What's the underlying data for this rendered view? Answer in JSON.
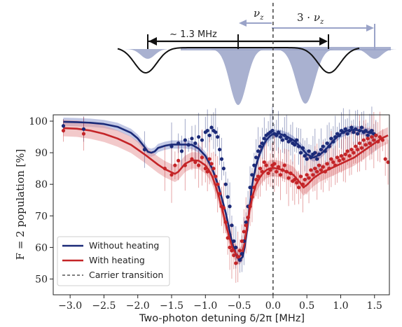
{
  "chart_data": {
    "type": "scatter",
    "xlabel": "Two-photon detuning δ/2π [MHz]",
    "ylabel": "F = 2  population [%]",
    "xlim": [
      -3.25,
      1.72
    ],
    "ylim": [
      45,
      102
    ],
    "xticks": [
      -3.0,
      -2.5,
      -2.0,
      -1.5,
      -1.0,
      -0.5,
      0.0,
      0.5,
      1.0,
      1.5
    ],
    "xtick_labels": [
      "−3.0",
      "−2.5",
      "−2.0",
      "−1.5",
      "−1.0",
      "−0.5",
      "0.0",
      "0.5",
      "1.0",
      "1.5"
    ],
    "yticks": [
      50,
      60,
      70,
      80,
      90,
      100
    ],
    "ytick_labels": [
      "50",
      "60",
      "70",
      "80",
      "90",
      "100"
    ],
    "grid": false,
    "legend_position": "bottom-left",
    "legend": [
      {
        "label": "Without heating",
        "style": "line",
        "color": "#1b2a78"
      },
      {
        "label": "With heating",
        "style": "line",
        "color": "#c42427"
      },
      {
        "label": "Carrier transition",
        "style": "dashed",
        "color": "#333333"
      }
    ],
    "carrier_x": 0.0,
    "series": [
      {
        "name": "Without heating",
        "color": "#1b2a78",
        "band_color": "#8f9bd0",
        "fit": {
          "x": [
            -3.1,
            -2.9,
            -2.7,
            -2.5,
            -2.3,
            -2.1,
            -2.0,
            -1.9,
            -1.85,
            -1.8,
            -1.75,
            -1.7,
            -1.6,
            -1.5,
            -1.4,
            -1.3,
            -1.2,
            -1.1,
            -1.0,
            -0.9,
            -0.8,
            -0.7,
            -0.65,
            -0.6,
            -0.55,
            -0.5,
            -0.45,
            -0.42,
            -0.38,
            -0.35,
            -0.32,
            -0.3,
            -0.25,
            -0.2,
            -0.15,
            -0.1,
            -0.05,
            0.0,
            0.1,
            0.2,
            0.3,
            0.4,
            0.5,
            0.6,
            0.7,
            0.8,
            0.9,
            1.0,
            1.1,
            1.2,
            1.3,
            1.4,
            1.5
          ],
          "y": [
            99.8,
            99.7,
            99.5,
            99.1,
            98.2,
            96.3,
            94.5,
            91.8,
            90.3,
            90.0,
            90.4,
            91.5,
            92.2,
            92.6,
            92.6,
            92.6,
            92.5,
            91.3,
            89.0,
            85.0,
            79.0,
            71.0,
            66.0,
            61.0,
            58.0,
            56.0,
            57.0,
            60.0,
            66.0,
            72.0,
            78.0,
            81.0,
            86.0,
            89.5,
            92.0,
            94.0,
            95.2,
            96.0,
            96.0,
            95.2,
            94.0,
            92.0,
            89.5,
            88.5,
            89.5,
            91.5,
            94.0,
            96.0,
            97.0,
            97.3,
            97.0,
            96.5,
            96.0
          ]
        },
        "points": {
          "x": [
            -3.1,
            -2.8,
            -1.9,
            -1.5,
            -1.4,
            -1.35,
            -1.3,
            -1.25,
            -1.2,
            -1.15,
            -1.1,
            -1.05,
            -1.0,
            -0.97,
            -0.94,
            -0.91,
            -0.88,
            -0.85,
            -0.82,
            -0.79,
            -0.76,
            -0.73,
            -0.7,
            -0.67,
            -0.64,
            -0.61,
            -0.58,
            -0.55,
            -0.52,
            -0.49,
            -0.46,
            -0.43,
            -0.4,
            -0.37,
            -0.34,
            -0.31,
            -0.28,
            -0.25,
            -0.22,
            -0.19,
            -0.16,
            -0.13,
            -0.1,
            -0.07,
            -0.04,
            -0.01,
            0.02,
            0.05,
            0.08,
            0.11,
            0.14,
            0.17,
            0.2,
            0.23,
            0.26,
            0.29,
            0.32,
            0.35,
            0.38,
            0.41,
            0.44,
            0.47,
            0.5,
            0.53,
            0.56,
            0.59,
            0.62,
            0.65,
            0.68,
            0.71,
            0.74,
            0.77,
            0.8,
            0.83,
            0.86,
            0.89,
            0.92,
            0.95,
            0.98,
            1.01,
            1.04,
            1.07,
            1.1,
            1.13,
            1.16,
            1.19,
            1.22,
            1.25,
            1.28,
            1.31,
            1.34,
            1.37,
            1.4,
            1.43,
            1.46,
            1.49,
            1.52
          ],
          "y": [
            98.5,
            97.5,
            91.0,
            92.0,
            93.0,
            90.5,
            94.0,
            92.5,
            94.5,
            93.0,
            95.0,
            94.0,
            96.5,
            97.0,
            95.5,
            98.0,
            97.0,
            96.5,
            95.0,
            91.0,
            88.0,
            85.0,
            80.0,
            76.0,
            73.0,
            67.0,
            62.0,
            60.0,
            57.0,
            56.0,
            58.0,
            62.0,
            68.0,
            73.0,
            79.0,
            83.0,
            86.0,
            88.5,
            90.5,
            92.0,
            93.0,
            94.5,
            95.5,
            96.0,
            96.5,
            97.0,
            96.0,
            95.5,
            96.5,
            95.0,
            94.0,
            95.5,
            94.5,
            93.5,
            94.0,
            93.0,
            92.5,
            94.0,
            92.0,
            90.0,
            91.5,
            89.0,
            88.0,
            90.5,
            88.5,
            89.5,
            90.0,
            88.0,
            89.5,
            91.0,
            92.0,
            90.5,
            93.0,
            92.0,
            94.5,
            93.5,
            95.0,
            96.0,
            95.5,
            97.0,
            96.5,
            97.5,
            96.0,
            97.0,
            98.0,
            96.5,
            97.5,
            96.0,
            97.0,
            98.0,
            96.5,
            97.0,
            95.5,
            96.5,
            97.0,
            96.0,
            95.5
          ]
        }
      },
      {
        "name": "With heating",
        "color": "#c42427",
        "band_color": "#e89c9e",
        "fit": {
          "x": [
            -3.1,
            -2.9,
            -2.7,
            -2.5,
            -2.3,
            -2.1,
            -1.9,
            -1.7,
            -1.6,
            -1.5,
            -1.45,
            -1.4,
            -1.3,
            -1.2,
            -1.1,
            -1.0,
            -0.95,
            -0.9,
            -0.85,
            -0.8,
            -0.75,
            -0.7,
            -0.65,
            -0.6,
            -0.55,
            -0.5,
            -0.45,
            -0.42,
            -0.4,
            -0.38,
            -0.35,
            -0.3,
            -0.25,
            -0.2,
            -0.15,
            -0.1,
            -0.05,
            0.0,
            0.05,
            0.1,
            0.2,
            0.3,
            0.4,
            0.45,
            0.5,
            0.6,
            0.7,
            0.8,
            0.9,
            1.0,
            1.1,
            1.2,
            1.3,
            1.4,
            1.5,
            1.6,
            1.7
          ],
          "y": [
            97.8,
            97.6,
            97.0,
            96.0,
            94.5,
            92.5,
            89.5,
            86.2,
            84.8,
            83.8,
            83.3,
            84.0,
            86.5,
            87.6,
            87.5,
            86.0,
            84.5,
            82.5,
            79.5,
            76.0,
            72.0,
            67.5,
            63.5,
            60.0,
            58.0,
            57.0,
            58.5,
            61.5,
            64.5,
            67.5,
            71.5,
            76.5,
            80.0,
            82.0,
            83.5,
            84.5,
            85.0,
            85.2,
            85.0,
            84.8,
            84.0,
            83.0,
            80.5,
            79.0,
            79.8,
            82.0,
            83.5,
            84.5,
            85.5,
            86.5,
            87.5,
            88.5,
            90.0,
            91.5,
            93.0,
            94.5,
            95.5
          ]
        },
        "points": {
          "x": [
            -3.1,
            -2.8,
            -1.6,
            -1.5,
            -1.45,
            -1.4,
            -1.3,
            -1.2,
            -1.15,
            -1.1,
            -1.05,
            -1.0,
            -0.97,
            -0.94,
            -0.91,
            -0.88,
            -0.85,
            -0.82,
            -0.79,
            -0.76,
            -0.73,
            -0.7,
            -0.67,
            -0.64,
            -0.61,
            -0.58,
            -0.55,
            -0.52,
            -0.49,
            -0.46,
            -0.43,
            -0.4,
            -0.37,
            -0.34,
            -0.31,
            -0.28,
            -0.25,
            -0.22,
            -0.19,
            -0.16,
            -0.13,
            -0.1,
            -0.07,
            -0.04,
            -0.01,
            0.02,
            0.05,
            0.08,
            0.11,
            0.14,
            0.17,
            0.2,
            0.23,
            0.26,
            0.29,
            0.32,
            0.35,
            0.38,
            0.41,
            0.44,
            0.47,
            0.5,
            0.53,
            0.56,
            0.59,
            0.62,
            0.65,
            0.68,
            0.71,
            0.74,
            0.77,
            0.8,
            0.83,
            0.86,
            0.89,
            0.92,
            0.95,
            0.98,
            1.01,
            1.04,
            1.07,
            1.1,
            1.13,
            1.16,
            1.19,
            1.22,
            1.25,
            1.28,
            1.31,
            1.34,
            1.37,
            1.4,
            1.43,
            1.46,
            1.49,
            1.52,
            1.55,
            1.58,
            1.62,
            1.66,
            1.7
          ],
          "y": [
            97.0,
            96.0,
            85.0,
            83.0,
            86.0,
            87.5,
            86.0,
            88.0,
            87.0,
            86.0,
            88.5,
            85.0,
            84.0,
            88.0,
            86.5,
            85.0,
            82.5,
            80.0,
            77.0,
            73.0,
            72.5,
            68.0,
            63.0,
            60.0,
            59.0,
            57.5,
            55.0,
            57.0,
            59.0,
            62.0,
            65.0,
            67.0,
            69.5,
            73.0,
            76.0,
            79.0,
            81.5,
            82.5,
            85.0,
            84.0,
            87.0,
            86.0,
            83.5,
            84.5,
            86.0,
            86.5,
            84.0,
            85.5,
            83.0,
            84.5,
            86.0,
            84.0,
            82.0,
            83.5,
            81.0,
            81.5,
            80.5,
            79.0,
            82.5,
            80.0,
            81.5,
            83.0,
            82.0,
            84.5,
            83.0,
            85.0,
            84.0,
            86.0,
            84.5,
            85.5,
            84.0,
            86.5,
            85.0,
            88.0,
            87.0,
            86.0,
            88.5,
            87.5,
            89.0,
            88.0,
            89.5,
            90.5,
            89.0,
            91.0,
            90.0,
            92.0,
            91.0,
            93.0,
            91.5,
            94.0,
            92.5,
            94.5,
            93.0,
            95.0,
            94.0,
            95.5,
            93.5,
            95.0,
            94.0,
            88.0,
            87.0
          ]
        }
      }
    ],
    "schematic": {
      "span_label": "~ 1.3 MHz",
      "nu_label": "ν",
      "nu_subscript": "z",
      "three_nu_prefix": "3 · ",
      "three_nu_label": "ν",
      "three_nu_subscript": "z"
    }
  }
}
